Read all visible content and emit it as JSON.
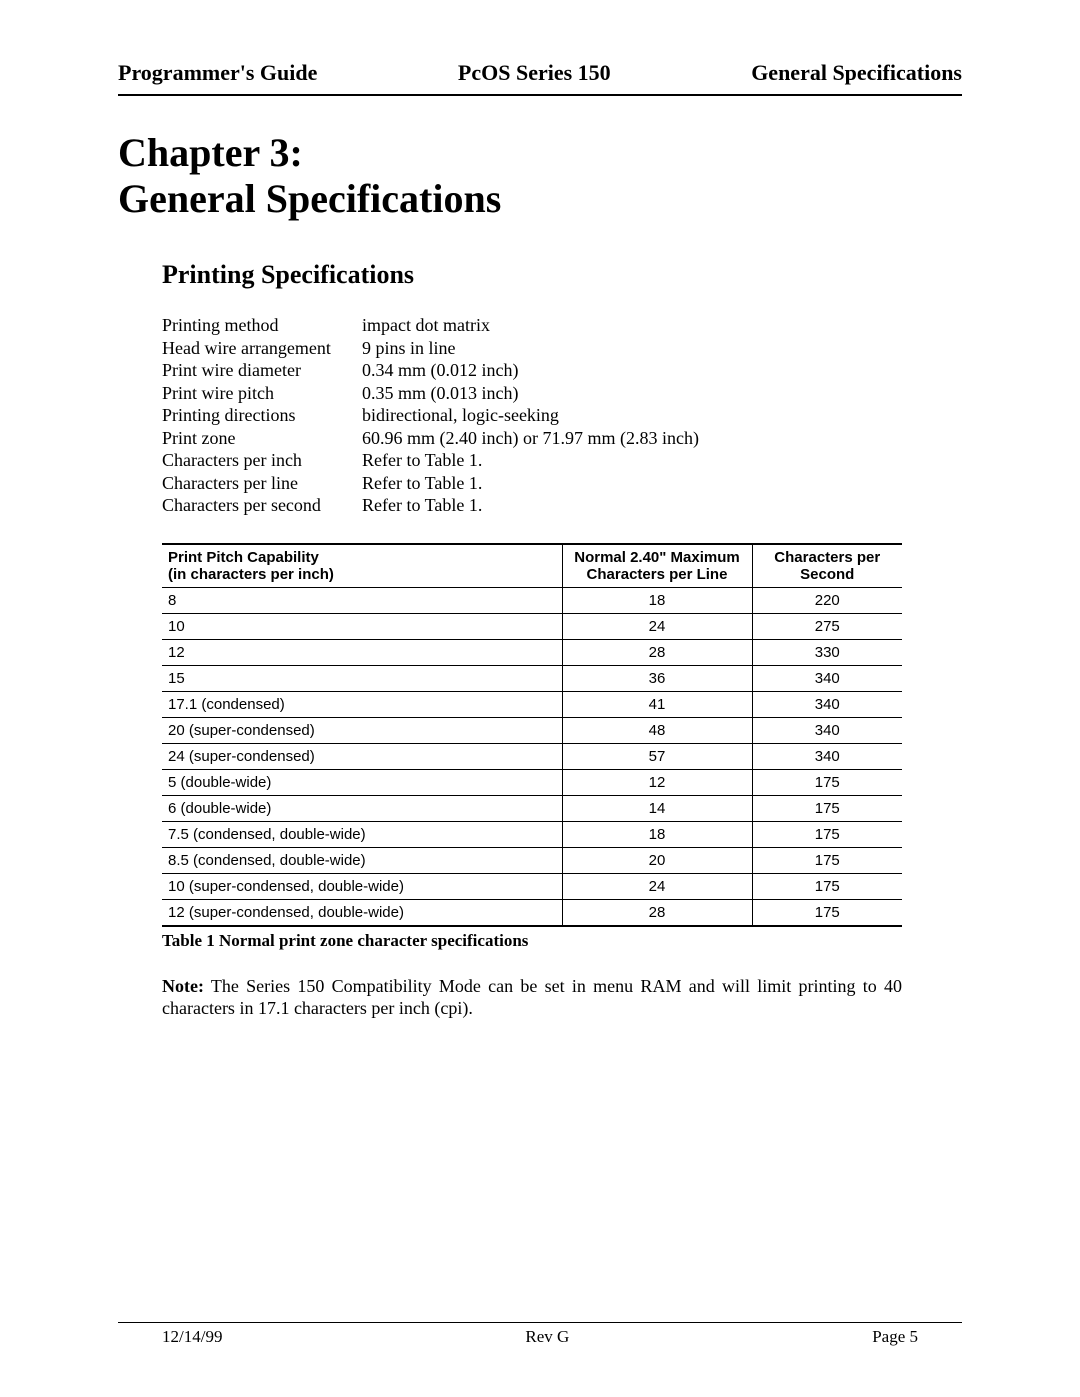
{
  "header": {
    "left": "Programmer's Guide",
    "center": "PcOS Series 150",
    "right": "General Specifications"
  },
  "chapter": {
    "line1": "Chapter 3:",
    "line2": "General Specifications"
  },
  "section_title": "Printing Specifications",
  "specs": [
    {
      "label": "Printing method",
      "value": "impact dot matrix"
    },
    {
      "label": "Head wire arrangement",
      "value": "9 pins in line"
    },
    {
      "label": "Print wire diameter",
      "value": "0.34 mm (0.012 inch)"
    },
    {
      "label": "Print wire pitch",
      "value": "0.35 mm (0.013 inch)"
    },
    {
      "label": "Printing directions",
      "value": "bidirectional, logic-seeking"
    },
    {
      "label": "Print zone",
      "value": "60.96 mm (2.40 inch) or 71.97 mm (2.83 inch)"
    },
    {
      "label": "Characters per inch",
      "value": "Refer to Table 1."
    },
    {
      "label": "Characters per line",
      "value": "Refer to Table 1."
    },
    {
      "label": "Characters per second",
      "value": "Refer to Table 1."
    }
  ],
  "table": {
    "headers": {
      "col_a_l1": "Print Pitch Capability",
      "col_a_l2": "(in characters per inch)",
      "col_b_l1": "Normal 2.40\" Maximum",
      "col_b_l2": "Characters per Line",
      "col_c_l1": "Characters per",
      "col_c_l2": "Second"
    },
    "rows": [
      {
        "a": "8",
        "b": "18",
        "c": "220"
      },
      {
        "a": "10",
        "b": "24",
        "c": "275"
      },
      {
        "a": "12",
        "b": "28",
        "c": "330"
      },
      {
        "a": "15",
        "b": "36",
        "c": "340"
      },
      {
        "a": "17.1 (condensed)",
        "b": "41",
        "c": "340"
      },
      {
        "a": "20 (super-condensed)",
        "b": "48",
        "c": "340"
      },
      {
        "a": "24 (super-condensed)",
        "b": "57",
        "c": "340"
      },
      {
        "a": "5 (double-wide)",
        "b": "12",
        "c": "175"
      },
      {
        "a": "6 (double-wide)",
        "b": "14",
        "c": "175"
      },
      {
        "a": "7.5 (condensed, double-wide)",
        "b": "18",
        "c": "175"
      },
      {
        "a": "8.5 (condensed, double-wide)",
        "b": "20",
        "c": "175"
      },
      {
        "a": "10 (super-condensed, double-wide)",
        "b": "24",
        "c": "175"
      },
      {
        "a": "12 (super-condensed, double-wide)",
        "b": "28",
        "c": "175"
      }
    ],
    "caption": "Table 1 Normal print zone character specifications"
  },
  "note": {
    "label": "Note:",
    "text": " The Series 150 Compatibility Mode can be set in menu RAM and will limit printing to 40 characters in 17.1 characters per inch (cpi)."
  },
  "footer": {
    "left": "12/14/99",
    "center": "Rev G",
    "right": "Page 5"
  }
}
